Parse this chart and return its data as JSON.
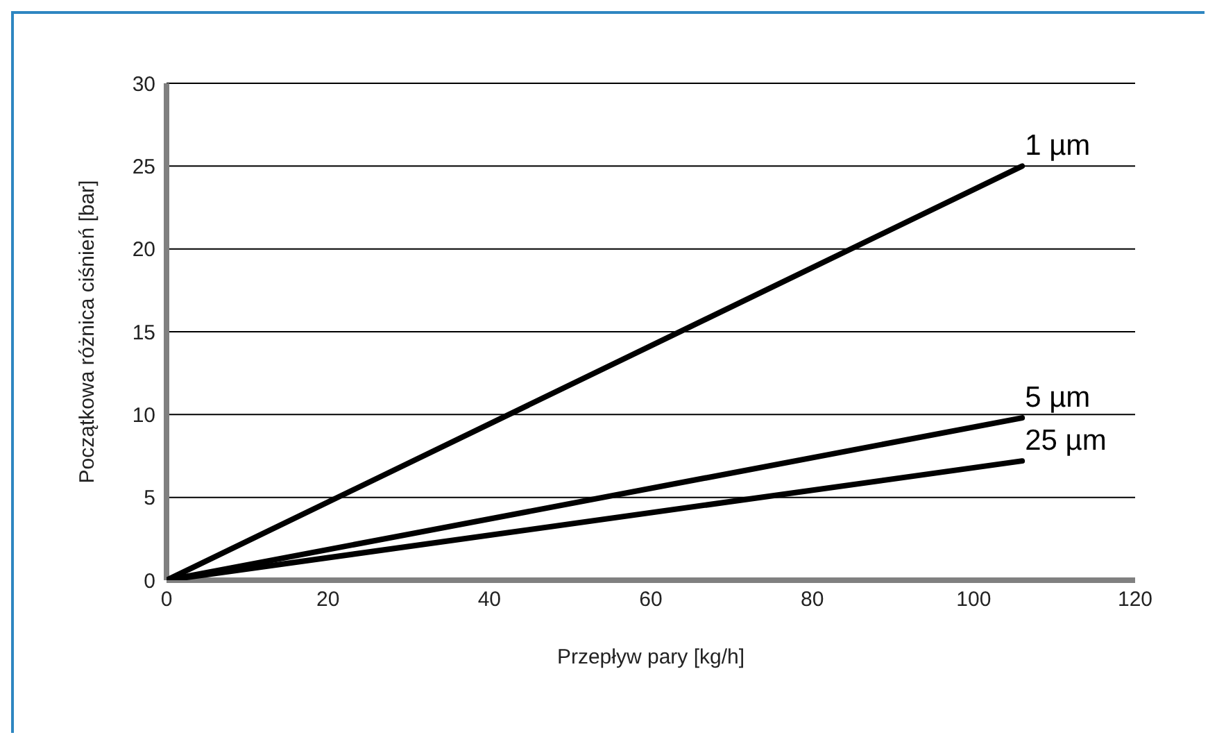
{
  "chart_data": {
    "type": "line",
    "xlabel": "Przepływ pary [kg/h]",
    "ylabel": "Początkowa różnica ciśnień [bar]",
    "xlim": [
      0,
      120
    ],
    "xticks": [
      0,
      20,
      40,
      60,
      80,
      100,
      120
    ],
    "ylim": [
      0,
      30
    ],
    "yticks": [
      0,
      5,
      10,
      15,
      20,
      25,
      30
    ],
    "grid": "y",
    "marker": "none",
    "line_style": "solid",
    "x": [
      0,
      106
    ],
    "series": [
      {
        "name": "1 µm",
        "color": "#000000",
        "values": [
          0,
          25
        ]
      },
      {
        "name": "5 µm",
        "color": "#000000",
        "values": [
          0,
          9.8
        ]
      },
      {
        "name": "25 µm",
        "color": "#000000",
        "values": [
          0,
          7.2
        ]
      }
    ]
  }
}
